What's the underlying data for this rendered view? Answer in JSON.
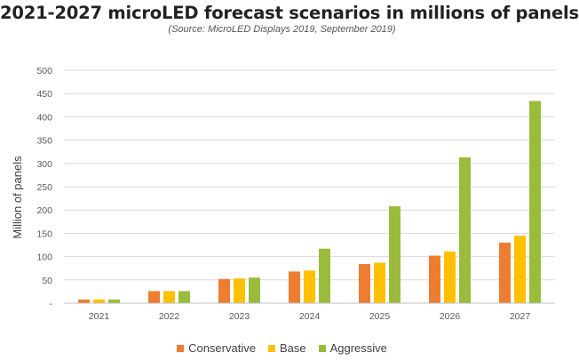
{
  "chart_data": {
    "type": "bar",
    "title": "2021-2027 microLED forecast scenarios in millions of panels",
    "subtitle": "(Source: MicroLED Displays 2019, September 2019)",
    "xlabel": "",
    "ylabel": "Million of panels",
    "ylim": [
      0,
      500
    ],
    "yticks": [
      0,
      50,
      100,
      150,
      200,
      250,
      300,
      350,
      400,
      450,
      500
    ],
    "ytick_labels": [
      "-",
      "50",
      "100",
      "150",
      "200",
      "250",
      "300",
      "350",
      "400",
      "450",
      "500"
    ],
    "grid": true,
    "legend_position": "bottom",
    "categories": [
      "2021",
      "2022",
      "2023",
      "2024",
      "2025",
      "2026",
      "2027"
    ],
    "series": [
      {
        "name": "Conservative",
        "color": "#ED7D31",
        "values": [
          8,
          26,
          52,
          68,
          84,
          102,
          130
        ]
      },
      {
        "name": "Base",
        "color": "#FFC000",
        "values": [
          8,
          26,
          53,
          70,
          87,
          111,
          145
        ]
      },
      {
        "name": "Aggressive",
        "color": "#9BBB3C",
        "values": [
          8,
          26,
          55,
          117,
          208,
          313,
          434
        ]
      }
    ]
  }
}
